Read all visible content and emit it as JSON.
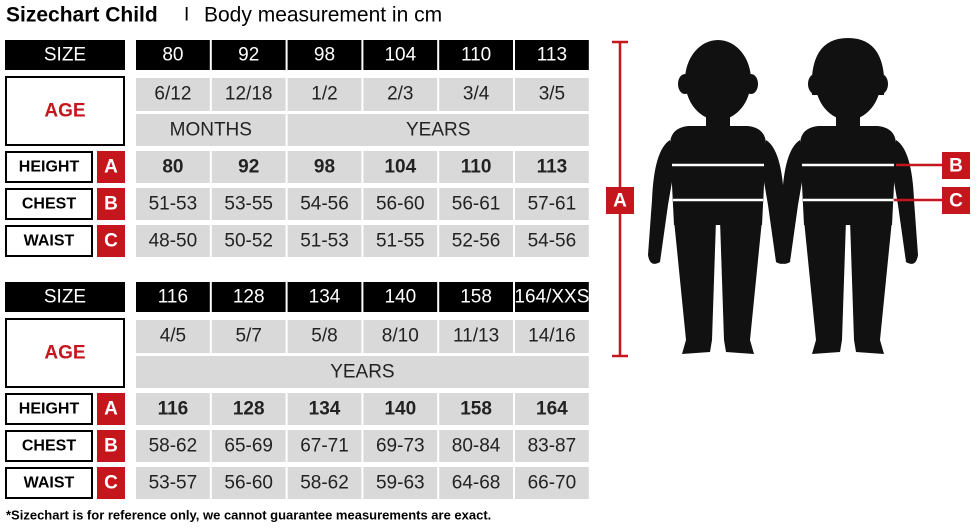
{
  "header": {
    "title": "Sizechart Child",
    "separator": "I",
    "subtitle": "Body measurement in cm"
  },
  "tables": [
    {
      "size_label": "SIZE",
      "sizes": [
        "80",
        "92",
        "98",
        "104",
        "110",
        "113"
      ],
      "age_label": "AGE",
      "ages": [
        "6/12",
        "12/18",
        "1/2",
        "2/3",
        "3/4",
        "3/5"
      ],
      "units": [
        "MONTHS",
        "YEARS"
      ],
      "rows": [
        {
          "label": "HEIGHT",
          "badge": "A",
          "values": [
            "80",
            "92",
            "98",
            "104",
            "110",
            "113"
          ]
        },
        {
          "label": "CHEST",
          "badge": "B",
          "values": [
            "51-53",
            "53-55",
            "54-56",
            "56-60",
            "56-61",
            "57-61"
          ]
        },
        {
          "label": "WAIST",
          "badge": "C",
          "values": [
            "48-50",
            "50-52",
            "51-53",
            "51-55",
            "52-56",
            "54-56"
          ]
        }
      ]
    },
    {
      "size_label": "SIZE",
      "sizes": [
        "116",
        "128",
        "134",
        "140",
        "158",
        "164/XXS"
      ],
      "age_label": "AGE",
      "ages": [
        "4/5",
        "5/7",
        "5/8",
        "8/10",
        "11/13",
        "14/16"
      ],
      "units": [
        "YEARS"
      ],
      "rows": [
        {
          "label": "HEIGHT",
          "badge": "A",
          "values": [
            "116",
            "128",
            "134",
            "140",
            "158",
            "164"
          ]
        },
        {
          "label": "CHEST",
          "badge": "B",
          "values": [
            "58-62",
            "65-69",
            "67-71",
            "69-73",
            "80-84",
            "83-87"
          ]
        },
        {
          "label": "WAIST",
          "badge": "C",
          "values": [
            "53-57",
            "56-60",
            "58-62",
            "59-63",
            "64-68",
            "66-70"
          ]
        }
      ]
    }
  ],
  "figure": {
    "labels": [
      "A",
      "B",
      "C"
    ]
  },
  "footnote": "*Sizechart is for reference only, we cannot guarantee measurements are exact."
}
